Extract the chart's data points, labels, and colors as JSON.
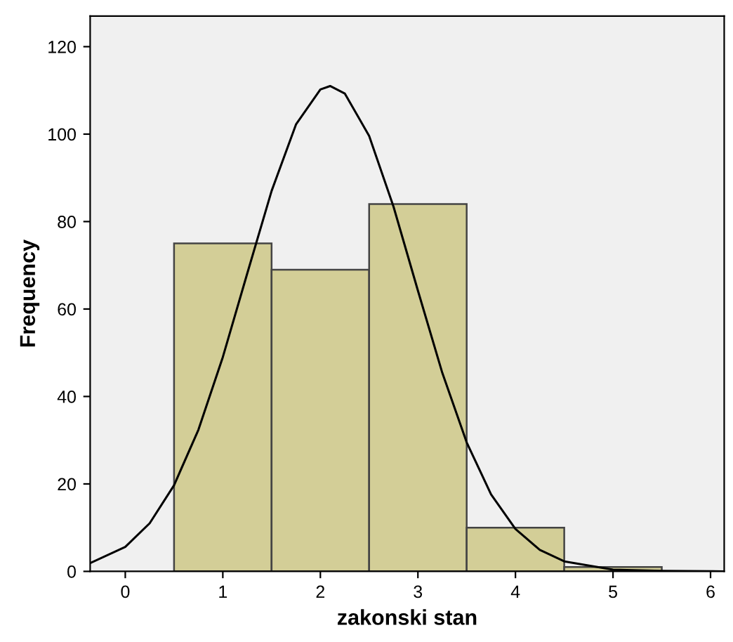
{
  "chart_data": {
    "type": "histogram",
    "xlabel": "zakonski stan",
    "ylabel": "Frequency",
    "bins": [
      0.5,
      1.5,
      2.5,
      3.5,
      4.5,
      5.5
    ],
    "series": [
      {
        "type": "histogram",
        "color": "#d3ce97",
        "values": [
          75,
          69,
          84,
          10,
          1
        ]
      },
      {
        "type": "line",
        "color": "#000000",
        "x": [
          -0.36,
          0,
          0.25,
          0.5,
          0.75,
          1.0,
          1.25,
          1.5,
          1.75,
          2.0,
          2.1,
          2.25,
          2.5,
          2.75,
          3.0,
          3.25,
          3.5,
          3.75,
          4.0,
          4.25,
          4.5,
          5.0,
          5.5,
          6.14
        ],
        "values": [
          1.9,
          5.6,
          11.0,
          19.7,
          32.4,
          49.0,
          68.1,
          87.0,
          102.2,
          110.2,
          111,
          109.3,
          99.6,
          83.4,
          64.2,
          45.4,
          29.5,
          17.6,
          9.7,
          4.9,
          2.3,
          0.4,
          0.1,
          0
        ]
      }
    ],
    "xlim": [
      -0.36,
      6.14
    ],
    "xticks": [
      0,
      1,
      2,
      3,
      4,
      5,
      6
    ],
    "ylim": [
      0,
      127
    ],
    "yticks": [
      0,
      20,
      40,
      60,
      80,
      100,
      120
    ],
    "grid": false,
    "legend": false
  }
}
